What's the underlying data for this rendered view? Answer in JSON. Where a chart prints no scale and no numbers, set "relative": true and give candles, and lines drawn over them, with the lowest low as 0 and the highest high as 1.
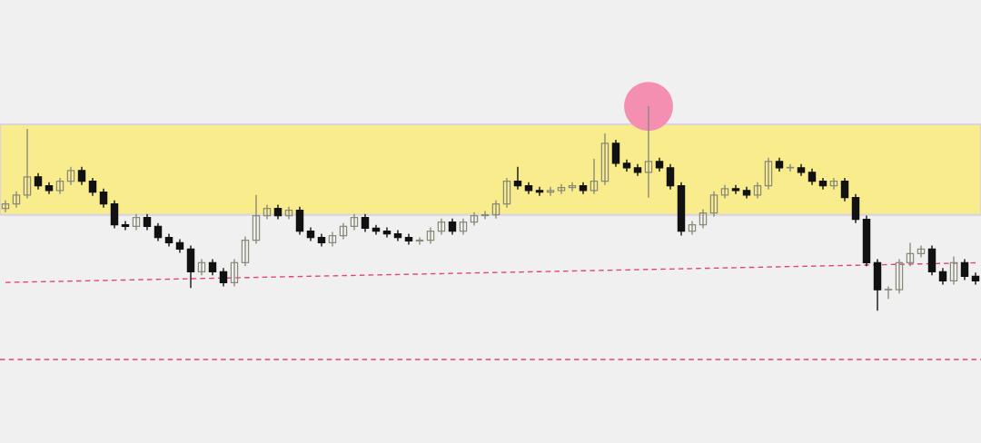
{
  "chart_data": {
    "type": "candlestick",
    "relative": true,
    "categories": [
      null,
      null,
      null,
      null,
      null,
      null,
      null,
      null,
      null,
      null,
      null,
      null,
      null,
      null,
      null,
      null,
      null,
      null,
      null,
      null,
      null,
      null,
      null,
      null,
      null,
      null,
      null,
      null,
      null,
      null,
      null,
      null,
      null,
      null,
      null,
      null,
      null,
      null,
      null,
      null,
      null,
      null,
      null,
      null,
      null,
      null,
      null,
      null,
      null,
      null,
      null,
      null,
      null,
      null,
      null,
      null,
      null,
      null,
      null,
      null,
      null,
      null,
      null,
      null,
      null,
      null,
      null,
      null,
      null,
      null,
      null,
      null,
      null,
      null,
      null,
      null,
      null,
      null,
      null,
      null,
      null,
      null,
      null,
      null,
      null,
      null,
      null,
      null,
      null,
      null
    ],
    "bands": [
      {
        "axis": "y",
        "from": 0.469,
        "to": 0.912,
        "color": "#f9ec8c"
      }
    ],
    "ref_lines": [
      {
        "axis": "y",
        "value": -0.239,
        "color": "#e0457b",
        "line_style": "dashed"
      }
    ],
    "series": [
      {
        "colors": [
          "#8a8a7a",
          "#8a8a7a",
          "#8a8a7a",
          "#111111",
          "#111111",
          "#8a8a7a",
          "#8a8a7a",
          "#111111",
          "#111111",
          "#111111",
          "#111111",
          "#111111",
          "#8a8a7a",
          "#111111",
          "#111111",
          "#111111",
          "#111111",
          "#111111",
          "#8a8a7a",
          "#111111",
          "#111111",
          "#8a8a7a",
          "#8a8a7a",
          "#8a8a7a",
          "#8a8a7a",
          "#111111",
          "#8a8a7a",
          "#111111",
          "#111111",
          "#111111",
          "#8a8a7a",
          "#8a8a7a",
          "#8a8a7a",
          "#111111",
          "#111111",
          "#111111",
          "#111111",
          "#111111",
          "#8a8a7a",
          "#8a8a7a",
          "#8a8a7a",
          "#111111",
          "#8a8a7a",
          "#8a8a7a",
          "#8a8a7a",
          "#8a8a7a",
          "#8a8a7a",
          "#111111",
          "#111111",
          "#111111",
          "#8a8a7a",
          "#8a8a7a",
          "#8a8a7a",
          "#111111",
          "#8a8a7a",
          "#8a8a7a",
          "#111111",
          "#111111",
          "#111111",
          "#8a8a7a",
          "#111111",
          "#111111",
          "#111111",
          "#8a8a7a",
          "#8a8a7a",
          "#8a8a7a",
          "#8a8a7a",
          "#111111",
          "#111111",
          "#8a8a7a",
          "#8a8a7a",
          "#111111",
          "#8a8a7a",
          "#111111",
          "#111111",
          "#111111",
          "#8a8a7a",
          "#111111",
          "#111111",
          "#111111",
          "#111111",
          "#8a8a7a",
          "#8a8a7a",
          "#8a8a7a",
          "#8a8a7a",
          "#111111",
          "#111111",
          "#8a8a7a",
          "#111111",
          "#111111"
        ],
        "ohlc": [
          [
            0.5,
            0.54,
            0.482,
            0.522
          ],
          [
            0.522,
            0.584,
            0.504,
            0.566
          ],
          [
            0.566,
            0.889,
            0.549,
            0.655
          ],
          [
            0.655,
            0.673,
            0.593,
            0.611
          ],
          [
            0.611,
            0.628,
            0.571,
            0.588
          ],
          [
            0.588,
            0.65,
            0.571,
            0.633
          ],
          [
            0.633,
            0.704,
            0.615,
            0.686
          ],
          [
            0.686,
            0.704,
            0.615,
            0.633
          ],
          [
            0.633,
            0.65,
            0.562,
            0.58
          ],
          [
            0.58,
            0.597,
            0.504,
            0.522
          ],
          [
            0.522,
            0.54,
            0.403,
            0.42
          ],
          [
            0.42,
            0.438,
            0.394,
            0.412
          ],
          [
            0.412,
            0.473,
            0.394,
            0.456
          ],
          [
            0.456,
            0.473,
            0.394,
            0.412
          ],
          [
            0.412,
            0.429,
            0.341,
            0.358
          ],
          [
            0.358,
            0.376,
            0.314,
            0.332
          ],
          [
            0.332,
            0.35,
            0.283,
            0.301
          ],
          [
            0.301,
            0.319,
            0.111,
            0.19
          ],
          [
            0.19,
            0.252,
            0.173,
            0.235
          ],
          [
            0.235,
            0.252,
            0.173,
            0.19
          ],
          [
            0.19,
            0.208,
            0.119,
            0.137
          ],
          [
            0.137,
            0.252,
            0.119,
            0.235
          ],
          [
            0.235,
            0.363,
            0.217,
            0.345
          ],
          [
            0.345,
            0.566,
            0.327,
            0.465
          ],
          [
            0.465,
            0.518,
            0.447,
            0.5
          ],
          [
            0.5,
            0.518,
            0.447,
            0.465
          ],
          [
            0.465,
            0.509,
            0.447,
            0.491
          ],
          [
            0.491,
            0.509,
            0.372,
            0.389
          ],
          [
            0.389,
            0.407,
            0.341,
            0.358
          ],
          [
            0.358,
            0.376,
            0.314,
            0.332
          ],
          [
            0.332,
            0.385,
            0.314,
            0.367
          ],
          [
            0.367,
            0.429,
            0.35,
            0.412
          ],
          [
            0.412,
            0.473,
            0.394,
            0.456
          ],
          [
            0.456,
            0.473,
            0.385,
            0.403
          ],
          [
            0.403,
            0.42,
            0.372,
            0.389
          ],
          [
            0.389,
            0.407,
            0.358,
            0.376
          ],
          [
            0.376,
            0.394,
            0.341,
            0.358
          ],
          [
            0.358,
            0.376,
            0.323,
            0.341
          ],
          [
            0.341,
            0.358,
            0.323,
            0.345
          ],
          [
            0.345,
            0.407,
            0.327,
            0.389
          ],
          [
            0.389,
            0.451,
            0.372,
            0.434
          ],
          [
            0.434,
            0.451,
            0.372,
            0.389
          ],
          [
            0.389,
            0.451,
            0.372,
            0.434
          ],
          [
            0.434,
            0.482,
            0.416,
            0.465
          ],
          [
            0.465,
            0.487,
            0.447,
            0.469
          ],
          [
            0.469,
            0.54,
            0.451,
            0.522
          ],
          [
            0.522,
            0.65,
            0.504,
            0.633
          ],
          [
            0.633,
            0.704,
            0.593,
            0.611
          ],
          [
            0.611,
            0.628,
            0.571,
            0.588
          ],
          [
            0.588,
            0.606,
            0.562,
            0.58
          ],
          [
            0.58,
            0.606,
            0.562,
            0.588
          ],
          [
            0.588,
            0.619,
            0.571,
            0.602
          ],
          [
            0.602,
            0.628,
            0.584,
            0.611
          ],
          [
            0.611,
            0.628,
            0.571,
            0.588
          ],
          [
            0.588,
            0.743,
            0.571,
            0.633
          ],
          [
            0.633,
            0.867,
            0.615,
            0.819
          ],
          [
            0.819,
            0.836,
            0.704,
            0.721
          ],
          [
            0.721,
            0.739,
            0.681,
            0.699
          ],
          [
            0.699,
            0.717,
            0.659,
            0.677
          ],
          [
            0.677,
            1.0,
            0.553,
            0.73
          ],
          [
            0.73,
            0.748,
            0.681,
            0.699
          ],
          [
            0.699,
            0.717,
            0.593,
            0.611
          ],
          [
            0.611,
            0.628,
            0.367,
            0.389
          ],
          [
            0.389,
            0.438,
            0.372,
            0.42
          ],
          [
            0.42,
            0.496,
            0.403,
            0.478
          ],
          [
            0.478,
            0.584,
            0.46,
            0.566
          ],
          [
            0.566,
            0.615,
            0.549,
            0.597
          ],
          [
            0.597,
            0.615,
            0.571,
            0.588
          ],
          [
            0.588,
            0.606,
            0.549,
            0.566
          ],
          [
            0.566,
            0.628,
            0.549,
            0.611
          ],
          [
            0.611,
            0.748,
            0.593,
            0.73
          ],
          [
            0.73,
            0.748,
            0.681,
            0.699
          ],
          [
            0.699,
            0.717,
            0.681,
            0.699
          ],
          [
            0.699,
            0.717,
            0.659,
            0.677
          ],
          [
            0.677,
            0.695,
            0.615,
            0.633
          ],
          [
            0.633,
            0.65,
            0.593,
            0.611
          ],
          [
            0.611,
            0.65,
            0.593,
            0.633
          ],
          [
            0.633,
            0.65,
            0.535,
            0.553
          ],
          [
            0.553,
            0.571,
            0.429,
            0.447
          ],
          [
            0.447,
            0.465,
            0.217,
            0.235
          ],
          [
            0.235,
            0.252,
            0.0,
            0.102
          ],
          [
            0.102,
            0.119,
            0.058,
            0.102
          ],
          [
            0.102,
            0.252,
            0.084,
            0.235
          ],
          [
            0.235,
            0.332,
            0.217,
            0.279
          ],
          [
            0.279,
            0.319,
            0.261,
            0.301
          ],
          [
            0.301,
            0.319,
            0.173,
            0.19
          ],
          [
            0.19,
            0.208,
            0.128,
            0.146
          ],
          [
            0.146,
            0.265,
            0.128,
            0.235
          ],
          [
            0.235,
            0.252,
            0.15,
            0.168
          ],
          [
            0.168,
            0.186,
            0.128,
            0.146
          ]
        ]
      },
      {
        "type": "line",
        "values": [
          0.138,
          null,
          null,
          null,
          null,
          null,
          null,
          null,
          null,
          null,
          null,
          null,
          null,
          null,
          null,
          null,
          null,
          null,
          null,
          null,
          null,
          null,
          null,
          null,
          null,
          null,
          null,
          null,
          null,
          null,
          null,
          null,
          null,
          null,
          null,
          null,
          null,
          null,
          null,
          null,
          null,
          null,
          null,
          null,
          null,
          null,
          null,
          null,
          null,
          null,
          null,
          null,
          null,
          null,
          null,
          null,
          null,
          null,
          null,
          null,
          null,
          null,
          null,
          null,
          null,
          null,
          null,
          null,
          null,
          null,
          null,
          null,
          null,
          null,
          null,
          null,
          null,
          null,
          null,
          null,
          null,
          null,
          null,
          null,
          null,
          null,
          null,
          null,
          null,
          0.234
        ],
        "color": "#e0457b",
        "line_style": "dashed"
      },
      {
        "type": "scatter",
        "values": [
          null,
          null,
          null,
          null,
          null,
          null,
          null,
          null,
          null,
          null,
          null,
          null,
          null,
          null,
          null,
          null,
          null,
          null,
          null,
          null,
          null,
          null,
          null,
          null,
          null,
          null,
          null,
          null,
          null,
          null,
          null,
          null,
          null,
          null,
          null,
          null,
          null,
          null,
          null,
          null,
          null,
          null,
          null,
          null,
          null,
          null,
          null,
          null,
          null,
          null,
          null,
          null,
          null,
          null,
          null,
          null,
          null,
          null,
          null,
          1.0,
          null,
          null,
          null,
          null,
          null,
          null,
          null,
          null,
          null,
          null,
          null,
          null,
          null,
          null,
          null,
          null,
          null,
          null,
          null,
          null,
          null,
          null,
          null,
          null,
          null,
          null,
          null,
          null,
          null,
          null
        ],
        "color": "#f48fb1",
        "marker": "circle"
      }
    ]
  }
}
